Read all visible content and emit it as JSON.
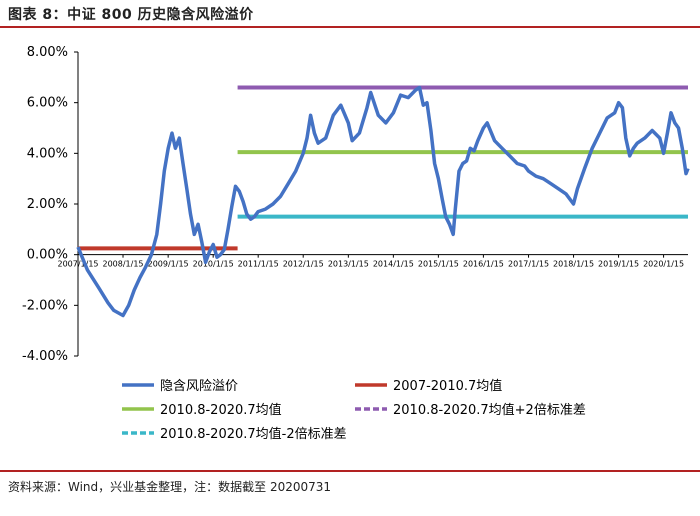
{
  "title": "图表 8：中证 800 历史隐含风险溢价",
  "source": "资料来源：Wind，兴业基金整理，注：数据截至 20200731",
  "chart_data": {
    "type": "line",
    "title": "",
    "xlabel": "",
    "ylabel": "",
    "ylim": [
      -4.0,
      8.0
    ],
    "y_ticks": [
      "8.00%",
      "6.00%",
      "4.00%",
      "2.00%",
      "0.00%",
      "-2.00%",
      "-4.00%"
    ],
    "x_ticks": [
      "2007/1/15",
      "2008/1/15",
      "2009/1/15",
      "2010/1/15",
      "2011/1/15",
      "2012/1/15",
      "2013/1/15",
      "2014/1/15",
      "2015/1/15",
      "2016/1/15",
      "2017/1/15",
      "2018/1/15",
      "2019/1/15",
      "2020/1/15"
    ],
    "x_range": [
      "2007-01-15",
      "2020-07-31"
    ],
    "series": [
      {
        "name": "隐含风险溢价",
        "color": "#4472c4",
        "style": "solid",
        "points": [
          [
            "2007-01-15",
            0.3
          ],
          [
            "2007-04-01",
            -0.6
          ],
          [
            "2007-07-01",
            -1.3
          ],
          [
            "2007-09-15",
            -1.9
          ],
          [
            "2007-11-01",
            -2.2
          ],
          [
            "2008-01-15",
            -2.4
          ],
          [
            "2008-03-01",
            -2.0
          ],
          [
            "2008-04-15",
            -1.4
          ],
          [
            "2008-06-01",
            -0.9
          ],
          [
            "2008-07-15",
            -0.5
          ],
          [
            "2008-09-01",
            0.0
          ],
          [
            "2008-10-15",
            0.8
          ],
          [
            "2008-11-15",
            2.0
          ],
          [
            "2008-12-15",
            3.3
          ],
          [
            "2009-01-15",
            4.2
          ],
          [
            "2009-02-15",
            4.8
          ],
          [
            "2009-03-15",
            4.2
          ],
          [
            "2009-04-15",
            4.6
          ],
          [
            "2009-05-15",
            3.6
          ],
          [
            "2009-06-15",
            2.6
          ],
          [
            "2009-07-15",
            1.6
          ],
          [
            "2009-08-15",
            0.8
          ],
          [
            "2009-09-15",
            1.2
          ],
          [
            "2009-10-15",
            0.5
          ],
          [
            "2009-11-15",
            -0.3
          ],
          [
            "2009-12-15",
            0.1
          ],
          [
            "2010-01-15",
            0.4
          ],
          [
            "2010-02-15",
            -0.1
          ],
          [
            "2010-03-15",
            0.0
          ],
          [
            "2010-04-15",
            0.2
          ],
          [
            "2010-05-15",
            1.0
          ],
          [
            "2010-06-15",
            1.9
          ],
          [
            "2010-07-15",
            2.7
          ],
          [
            "2010-08-15",
            2.5
          ],
          [
            "2010-09-15",
            2.1
          ],
          [
            "2010-10-15",
            1.6
          ],
          [
            "2010-11-15",
            1.4
          ],
          [
            "2010-12-15",
            1.5
          ],
          [
            "2011-01-15",
            1.7
          ],
          [
            "2011-03-15",
            1.8
          ],
          [
            "2011-05-15",
            2.0
          ],
          [
            "2011-07-15",
            2.3
          ],
          [
            "2011-09-15",
            2.8
          ],
          [
            "2011-11-15",
            3.3
          ],
          [
            "2012-01-15",
            4.0
          ],
          [
            "2012-02-15",
            4.6
          ],
          [
            "2012-03-15",
            5.5
          ],
          [
            "2012-04-15",
            4.8
          ],
          [
            "2012-05-15",
            4.4
          ],
          [
            "2012-07-15",
            4.6
          ],
          [
            "2012-09-15",
            5.5
          ],
          [
            "2012-11-15",
            5.9
          ],
          [
            "2013-01-15",
            5.2
          ],
          [
            "2013-02-15",
            4.5
          ],
          [
            "2013-04-15",
            4.8
          ],
          [
            "2013-06-15",
            5.8
          ],
          [
            "2013-07-15",
            6.4
          ],
          [
            "2013-09-15",
            5.5
          ],
          [
            "2013-11-15",
            5.2
          ],
          [
            "2014-01-15",
            5.6
          ],
          [
            "2014-03-15",
            6.3
          ],
          [
            "2014-05-15",
            6.2
          ],
          [
            "2014-07-15",
            6.5
          ],
          [
            "2014-08-15",
            6.6
          ],
          [
            "2014-09-15",
            5.9
          ],
          [
            "2014-10-15",
            6.0
          ],
          [
            "2014-11-15",
            4.9
          ],
          [
            "2014-12-15",
            3.6
          ],
          [
            "2015-01-15",
            3.0
          ],
          [
            "2015-02-15",
            2.2
          ],
          [
            "2015-03-15",
            1.5
          ],
          [
            "2015-04-15",
            1.2
          ],
          [
            "2015-05-15",
            0.8
          ],
          [
            "2015-06-01",
            1.8
          ],
          [
            "2015-07-01",
            3.3
          ],
          [
            "2015-08-01",
            3.6
          ],
          [
            "2015-09-01",
            3.7
          ],
          [
            "2015-10-01",
            4.2
          ],
          [
            "2015-11-01",
            4.1
          ],
          [
            "2015-12-01",
            4.5
          ],
          [
            "2016-01-15",
            5.0
          ],
          [
            "2016-02-15",
            5.2
          ],
          [
            "2016-04-15",
            4.5
          ],
          [
            "2016-06-15",
            4.2
          ],
          [
            "2016-08-15",
            3.9
          ],
          [
            "2016-10-15",
            3.6
          ],
          [
            "2016-12-15",
            3.5
          ],
          [
            "2017-01-15",
            3.3
          ],
          [
            "2017-03-15",
            3.1
          ],
          [
            "2017-05-15",
            3.0
          ],
          [
            "2017-07-15",
            2.8
          ],
          [
            "2017-09-15",
            2.6
          ],
          [
            "2017-11-15",
            2.4
          ],
          [
            "2018-01-15",
            2.0
          ],
          [
            "2018-02-15",
            2.6
          ],
          [
            "2018-04-15",
            3.4
          ],
          [
            "2018-06-15",
            4.2
          ],
          [
            "2018-08-15",
            4.8
          ],
          [
            "2018-10-15",
            5.4
          ],
          [
            "2018-12-15",
            5.6
          ],
          [
            "2019-01-15",
            6.0
          ],
          [
            "2019-02-15",
            5.8
          ],
          [
            "2019-03-15",
            4.6
          ],
          [
            "2019-04-15",
            3.9
          ],
          [
            "2019-05-15",
            4.2
          ],
          [
            "2019-06-15",
            4.4
          ],
          [
            "2019-08-15",
            4.6
          ],
          [
            "2019-10-15",
            4.9
          ],
          [
            "2019-12-15",
            4.6
          ],
          [
            "2020-01-15",
            4.0
          ],
          [
            "2020-02-15",
            4.8
          ],
          [
            "2020-03-15",
            5.6
          ],
          [
            "2020-04-15",
            5.2
          ],
          [
            "2020-05-15",
            5.0
          ],
          [
            "2020-06-15",
            4.2
          ],
          [
            "2020-07-15",
            3.2
          ],
          [
            "2020-07-31",
            3.4
          ]
        ]
      },
      {
        "name": "2007-2010.7均值",
        "color": "#c0392b",
        "style": "solid",
        "x_start": "2007-01-15",
        "x_end": "2010-08-01",
        "value": 0.25
      },
      {
        "name": "2010.8-2020.7均值",
        "color": "#92c44c",
        "style": "solid",
        "x_start": "2010-08-01",
        "x_end": "2020-07-31",
        "value": 4.05
      },
      {
        "name": "2010.8-2020.7均值+2倍标准差",
        "color": "#8e5bb0",
        "style": "dashed",
        "x_start": "2010-08-01",
        "x_end": "2020-07-31",
        "value": 6.6
      },
      {
        "name": "2010.8-2020.7均值-2倍标准差",
        "color": "#3ab7c8",
        "style": "dashed",
        "x_start": "2010-08-01",
        "x_end": "2020-07-31",
        "value": 1.5
      }
    ],
    "legend": [
      {
        "label": "隐含风险溢价",
        "color": "#4472c4",
        "style": "solid"
      },
      {
        "label": "2007-2010.7均值",
        "color": "#c0392b",
        "style": "solid"
      },
      {
        "label": "2010.8-2020.7均值",
        "color": "#92c44c",
        "style": "solid"
      },
      {
        "label": "2010.8-2020.7均值+2倍标准差",
        "color": "#8e5bb0",
        "style": "dashed"
      },
      {
        "label": "2010.8-2020.7均值-2倍标准差",
        "color": "#3ab7c8",
        "style": "dashed"
      }
    ],
    "legend_position": "bottom",
    "grid": false
  }
}
